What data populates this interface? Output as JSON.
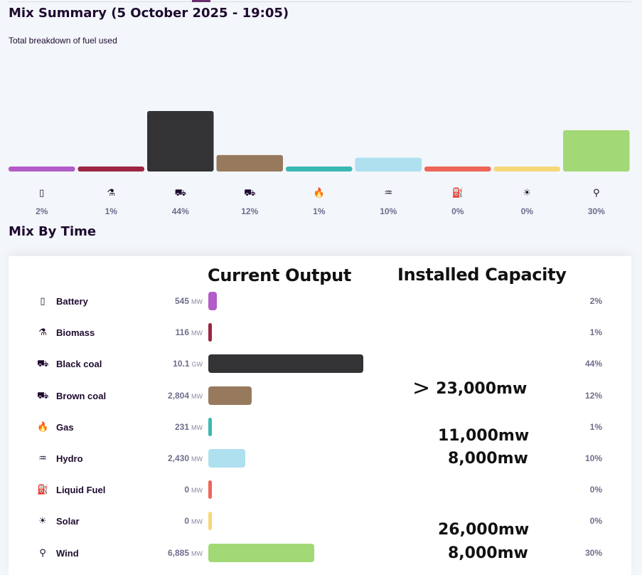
{
  "summary": {
    "title": "Mix Summary (5 October 2025 - 19:05)",
    "subtitle": "Total breakdown of fuel used"
  },
  "by_time": {
    "title": "Mix By Time",
    "overlay_current": "Current Output",
    "overlay_capacity": "Installed Capacity"
  },
  "chart_data": {
    "type": "bar",
    "title": "",
    "categories": [
      "Battery",
      "Biomass",
      "Black coal",
      "Brown coal",
      "Gas",
      "Hydro",
      "Liquid Fuel",
      "Solar",
      "Wind"
    ],
    "percent_labels": [
      "2%",
      "1%",
      "44%",
      "12%",
      "1%",
      "10%",
      "0%",
      "0%",
      "30%"
    ],
    "values": [
      2,
      1,
      44,
      12,
      1,
      10,
      0,
      0,
      30
    ],
    "ylim": [
      0,
      44
    ],
    "grid": false,
    "legend": "none",
    "colors": [
      "#b35cc8",
      "#9b2743",
      "#333336",
      "#977a5e",
      "#3bb8b2",
      "#aee0ef",
      "#ee6658",
      "#f6d879",
      "#a2d976"
    ]
  },
  "fuels": [
    {
      "name": "Battery",
      "icon": "battery-icon",
      "glyph": "▯",
      "value": "545",
      "unit": "MW",
      "output_mw": 545,
      "pct": "2%",
      "color": "#b35cc8"
    },
    {
      "name": "Biomass",
      "icon": "biomass-icon",
      "glyph": "⚗",
      "value": "116",
      "unit": "MW",
      "output_mw": 116,
      "pct": "1%",
      "color": "#9b2743"
    },
    {
      "name": "Black coal",
      "icon": "black-coal-icon",
      "glyph": "⛟",
      "value": "10.1",
      "unit": "GW",
      "output_mw": 10100,
      "pct": "44%",
      "color": "#333336"
    },
    {
      "name": "Brown coal",
      "icon": "brown-coal-icon",
      "glyph": "⛟",
      "value": "2,804",
      "unit": "MW",
      "output_mw": 2804,
      "pct": "12%",
      "color": "#977a5e"
    },
    {
      "name": "Gas",
      "icon": "gas-flame-icon",
      "glyph": "🔥",
      "value": "231",
      "unit": "MW",
      "output_mw": 231,
      "pct": "1%",
      "color": "#3bb8b2"
    },
    {
      "name": "Hydro",
      "icon": "hydro-icon",
      "glyph": "♒",
      "value": "2,430",
      "unit": "MW",
      "output_mw": 2430,
      "pct": "10%",
      "color": "#aee0ef"
    },
    {
      "name": "Liquid Fuel",
      "icon": "liquid-fuel-icon",
      "glyph": "⛽",
      "value": "0",
      "unit": "MW",
      "output_mw": 0,
      "pct": "0%",
      "color": "#ee6658"
    },
    {
      "name": "Solar",
      "icon": "solar-panel-icon",
      "glyph": "☀",
      "value": "0",
      "unit": "MW",
      "output_mw": 0,
      "pct": "0%",
      "color": "#f6d879"
    },
    {
      "name": "Wind",
      "icon": "wind-turbine-icon",
      "glyph": "⚲",
      "value": "6,885",
      "unit": "MW",
      "output_mw": 6885,
      "pct": "30%",
      "color": "#a2d976"
    }
  ],
  "capacity_notes": [
    {
      "gt": ">",
      "text": "23,000mw"
    },
    {
      "gt": "",
      "text": "11,000mw"
    },
    {
      "gt": "",
      "text": "8,000mw"
    },
    {
      "gt": "",
      "text": "26,000mw"
    },
    {
      "gt": "",
      "text": "8,000mw"
    }
  ]
}
